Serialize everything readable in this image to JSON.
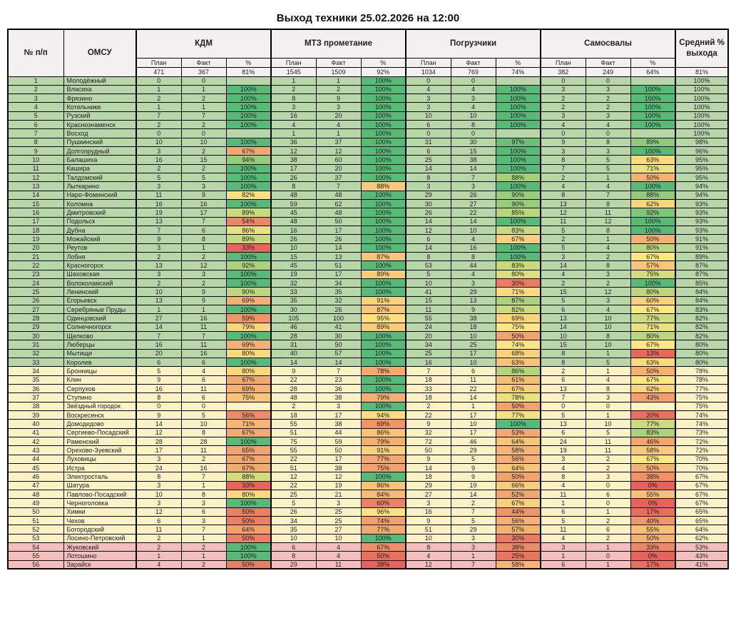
{
  "title": "Выход техники 25.02.2026 на 12:00",
  "header": {
    "num": "№ п/п",
    "omsu": "ОМСУ",
    "groups": [
      {
        "label": "КДМ"
      },
      {
        "label": "МТЗ прометание"
      },
      {
        "label": "Погрузчики"
      },
      {
        "label": "Самосвалы"
      }
    ],
    "sub": [
      "План",
      "Факт",
      "%"
    ],
    "avg": "Средний % выхода"
  },
  "totals": {
    "cells": [
      "471",
      "367",
      "81%",
      "1545",
      "1509",
      "92%",
      "1034",
      "769",
      "74%",
      "382",
      "249",
      "64%"
    ],
    "avg": "81%"
  },
  "colors": {
    "band_green": "#b7d7a8",
    "band_yellow": "#fcf2c3",
    "band_pink": "#f4bebc",
    "header_bg": "#f2f1ef",
    "scale_red": "#e8615a",
    "scale_yellow": "#fde87e",
    "scale_green": "#55bb77",
    "border": "#000000"
  },
  "scales": {
    "kdm": {
      "min": 25,
      "mid": 84
    },
    "mtz": {
      "min": 30,
      "mid": 97
    },
    "pogr": {
      "min": 0,
      "mid": 75
    },
    "sam": {
      "min": 0,
      "mid": 67
    }
  },
  "rows": [
    {
      "n": "1",
      "name": "Молодёжный",
      "band": "g",
      "c": [
        "0",
        "0",
        "",
        "1",
        "1",
        "100%",
        "0",
        "0",
        "",
        "0",
        "0",
        ""
      ],
      "avg": "100%"
    },
    {
      "n": "2",
      "name": "Власиха",
      "band": "g",
      "c": [
        "1",
        "1",
        "100%",
        "2",
        "2",
        "100%",
        "4",
        "4",
        "100%",
        "3",
        "3",
        "100%"
      ],
      "avg": "100%"
    },
    {
      "n": "3",
      "name": "Фрязино",
      "band": "g",
      "c": [
        "2",
        "2",
        "100%",
        "8",
        "9",
        "100%",
        "3",
        "3",
        "100%",
        "2",
        "2",
        "100%"
      ],
      "avg": "100%"
    },
    {
      "n": "4",
      "name": "Котельники",
      "band": "g",
      "c": [
        "1",
        "1",
        "100%",
        "3",
        "3",
        "100%",
        "3",
        "4",
        "100%",
        "2",
        "2",
        "100%"
      ],
      "avg": "100%"
    },
    {
      "n": "5",
      "name": "Рузский",
      "band": "g",
      "c": [
        "7",
        "7",
        "100%",
        "16",
        "20",
        "100%",
        "10",
        "10",
        "100%",
        "3",
        "3",
        "100%"
      ],
      "avg": "100%"
    },
    {
      "n": "6",
      "name": "Краснознаменск",
      "band": "g",
      "c": [
        "2",
        "2",
        "100%",
        "4",
        "4",
        "100%",
        "6",
        "8",
        "100%",
        "4",
        "4",
        "100%"
      ],
      "avg": "100%"
    },
    {
      "n": "7",
      "name": "Восход",
      "band": "g",
      "c": [
        "0",
        "0",
        "",
        "1",
        "1",
        "100%",
        "0",
        "0",
        "",
        "0",
        "0",
        ""
      ],
      "avg": "100%"
    },
    {
      "n": "8",
      "name": "Пушкинский",
      "band": "g",
      "c": [
        "10",
        "10",
        "100%",
        "36",
        "37",
        "100%",
        "31",
        "30",
        "97%",
        "9",
        "8",
        "89%"
      ],
      "avg": "98%"
    },
    {
      "n": "9",
      "name": "Долгопрудный",
      "band": "g",
      "c": [
        "3",
        "2",
        "67%",
        "12",
        "12",
        "100%",
        "6",
        "15",
        "100%",
        "3",
        "3",
        "100%"
      ],
      "avg": "96%"
    },
    {
      "n": "10",
      "name": "Балашиха",
      "band": "g",
      "c": [
        "16",
        "15",
        "94%",
        "38",
        "60",
        "100%",
        "25",
        "38",
        "100%",
        "8",
        "5",
        "63%"
      ],
      "avg": "95%"
    },
    {
      "n": "11",
      "name": "Кашира",
      "band": "g",
      "c": [
        "2",
        "2",
        "100%",
        "17",
        "20",
        "100%",
        "14",
        "14",
        "100%",
        "7",
        "5",
        "71%"
      ],
      "avg": "95%"
    },
    {
      "n": "12",
      "name": "Талдомский",
      "band": "g",
      "c": [
        "5",
        "5",
        "100%",
        "26",
        "37",
        "100%",
        "8",
        "7",
        "88%",
        "2",
        "1",
        "50%"
      ],
      "avg": "95%"
    },
    {
      "n": "13",
      "name": "Лыткарино",
      "band": "g",
      "c": [
        "3",
        "3",
        "100%",
        "8",
        "7",
        "88%",
        "3",
        "3",
        "100%",
        "4",
        "4",
        "100%"
      ],
      "avg": "94%"
    },
    {
      "n": "14",
      "name": "Наро-Фоминский",
      "band": "g",
      "c": [
        "11",
        "9",
        "82%",
        "48",
        "48",
        "100%",
        "29",
        "26",
        "90%",
        "8",
        "7",
        "88%"
      ],
      "avg": "94%"
    },
    {
      "n": "15",
      "name": "Коломна",
      "band": "g",
      "c": [
        "16",
        "16",
        "100%",
        "59",
        "62",
        "100%",
        "30",
        "27",
        "90%",
        "13",
        "8",
        "62%"
      ],
      "avg": "93%"
    },
    {
      "n": "16",
      "name": "Дмитровский",
      "band": "g",
      "c": [
        "19",
        "17",
        "89%",
        "45",
        "48",
        "100%",
        "26",
        "22",
        "85%",
        "12",
        "11",
        "92%"
      ],
      "avg": "93%"
    },
    {
      "n": "17",
      "name": "Подольск",
      "band": "g",
      "c": [
        "13",
        "7",
        "54%",
        "48",
        "50",
        "100%",
        "14",
        "14",
        "100%",
        "11",
        "12",
        "100%"
      ],
      "avg": "93%"
    },
    {
      "n": "18",
      "name": "Дубна",
      "band": "g",
      "c": [
        "7",
        "6",
        "86%",
        "16",
        "17",
        "100%",
        "12",
        "10",
        "83%",
        "5",
        "8",
        "100%"
      ],
      "avg": "93%"
    },
    {
      "n": "19",
      "name": "Можайский",
      "band": "g",
      "c": [
        "9",
        "8",
        "89%",
        "26",
        "26",
        "100%",
        "6",
        "4",
        "67%",
        "2",
        "1",
        "50%"
      ],
      "avg": "91%"
    },
    {
      "n": "20",
      "name": "Реутов",
      "band": "g",
      "c": [
        "3",
        "1",
        "33%",
        "10",
        "14",
        "100%",
        "14",
        "16",
        "100%",
        "5",
        "4",
        "80%"
      ],
      "avg": "91%"
    },
    {
      "n": "21",
      "name": "Лобня",
      "band": "g",
      "c": [
        "2",
        "2",
        "100%",
        "15",
        "13",
        "87%",
        "8",
        "8",
        "100%",
        "3",
        "2",
        "67%"
      ],
      "avg": "89%"
    },
    {
      "n": "22",
      "name": "Красногорск",
      "band": "g",
      "c": [
        "13",
        "12",
        "92%",
        "45",
        "51",
        "100%",
        "53",
        "44",
        "83%",
        "14",
        "8",
        "57%"
      ],
      "avg": "87%"
    },
    {
      "n": "23",
      "name": "Шаховская",
      "band": "g",
      "c": [
        "3",
        "3",
        "100%",
        "19",
        "17",
        "89%",
        "5",
        "4",
        "80%",
        "4",
        "3",
        "75%"
      ],
      "avg": "87%"
    },
    {
      "n": "24",
      "name": "Волоколамский",
      "band": "g",
      "c": [
        "2",
        "2",
        "100%",
        "32",
        "34",
        "100%",
        "10",
        "3",
        "30%",
        "2",
        "2",
        "100%"
      ],
      "avg": "85%"
    },
    {
      "n": "25",
      "name": "Ленинский",
      "band": "g",
      "c": [
        "10",
        "9",
        "90%",
        "33",
        "35",
        "100%",
        "41",
        "29",
        "71%",
        "15",
        "12",
        "80%"
      ],
      "avg": "84%"
    },
    {
      "n": "26",
      "name": "Егорьевск",
      "band": "g",
      "c": [
        "13",
        "9",
        "69%",
        "35",
        "32",
        "91%",
        "15",
        "13",
        "87%",
        "5",
        "3",
        "60%"
      ],
      "avg": "84%"
    },
    {
      "n": "27",
      "name": "Серебряные Пруды",
      "band": "g",
      "c": [
        "1",
        "1",
        "100%",
        "30",
        "26",
        "87%",
        "11",
        "9",
        "82%",
        "6",
        "4",
        "67%"
      ],
      "avg": "83%"
    },
    {
      "n": "28",
      "name": "Одинцовский",
      "band": "g",
      "c": [
        "27",
        "16",
        "59%",
        "105",
        "100",
        "95%",
        "55",
        "38",
        "69%",
        "13",
        "10",
        "77%"
      ],
      "avg": "82%"
    },
    {
      "n": "29",
      "name": "Солнечногорск",
      "band": "g",
      "c": [
        "14",
        "11",
        "79%",
        "46",
        "41",
        "89%",
        "24",
        "18",
        "75%",
        "14",
        "10",
        "71%"
      ],
      "avg": "82%"
    },
    {
      "n": "30",
      "name": "Щелково",
      "band": "g",
      "c": [
        "7",
        "7",
        "100%",
        "28",
        "30",
        "100%",
        "20",
        "10",
        "50%",
        "10",
        "8",
        "80%"
      ],
      "avg": "82%"
    },
    {
      "n": "31",
      "name": "Люберцы",
      "band": "g",
      "c": [
        "16",
        "11",
        "69%",
        "31",
        "50",
        "100%",
        "34",
        "25",
        "74%",
        "15",
        "10",
        "67%"
      ],
      "avg": "80%"
    },
    {
      "n": "32",
      "name": "Мытищи",
      "band": "g",
      "c": [
        "20",
        "16",
        "80%",
        "40",
        "57",
        "100%",
        "25",
        "17",
        "68%",
        "8",
        "1",
        "13%"
      ],
      "avg": "80%"
    },
    {
      "n": "33",
      "name": "Королев",
      "band": "g",
      "c": [
        "6",
        "6",
        "100%",
        "14",
        "14",
        "100%",
        "16",
        "10",
        "63%",
        "8",
        "5",
        "63%"
      ],
      "avg": "80%"
    },
    {
      "n": "34",
      "name": "Бронницы",
      "band": "y",
      "c": [
        "5",
        "4",
        "80%",
        "9",
        "7",
        "78%",
        "7",
        "6",
        "86%",
        "2",
        "1",
        "50%"
      ],
      "avg": "78%"
    },
    {
      "n": "35",
      "name": "Клин",
      "band": "y",
      "c": [
        "9",
        "6",
        "67%",
        "22",
        "23",
        "100%",
        "18",
        "11",
        "61%",
        "6",
        "4",
        "67%"
      ],
      "avg": "78%"
    },
    {
      "n": "36",
      "name": "Серпухов",
      "band": "y",
      "c": [
        "16",
        "11",
        "69%",
        "28",
        "36",
        "100%",
        "33",
        "22",
        "67%",
        "13",
        "8",
        "62%"
      ],
      "avg": "77%"
    },
    {
      "n": "37",
      "name": "Ступино",
      "band": "y",
      "c": [
        "8",
        "6",
        "75%",
        "48",
        "38",
        "79%",
        "18",
        "14",
        "78%",
        "7",
        "3",
        "43%"
      ],
      "avg": "75%"
    },
    {
      "n": "38",
      "name": "Звёздный городок",
      "band": "y",
      "c": [
        "0",
        "0",
        "",
        "2",
        "3",
        "100%",
        "2",
        "1",
        "50%",
        "0",
        "0",
        ""
      ],
      "avg": "75%"
    },
    {
      "n": "39",
      "name": "Воскресенск",
      "band": "y",
      "c": [
        "9",
        "5",
        "56%",
        "18",
        "17",
        "94%",
        "22",
        "17",
        "77%",
        "5",
        "1",
        "20%"
      ],
      "avg": "74%"
    },
    {
      "n": "40",
      "name": "Домодедово",
      "band": "y",
      "c": [
        "14",
        "10",
        "71%",
        "55",
        "38",
        "69%",
        "9",
        "10",
        "100%",
        "13",
        "10",
        "77%"
      ],
      "avg": "74%"
    },
    {
      "n": "41",
      "name": "Сергиево-Посадский",
      "band": "y",
      "c": [
        "12",
        "8",
        "67%",
        "51",
        "44",
        "86%",
        "32",
        "17",
        "53%",
        "6",
        "5",
        "83%"
      ],
      "avg": "73%"
    },
    {
      "n": "42",
      "name": "Раменский",
      "band": "y",
      "c": [
        "28",
        "28",
        "100%",
        "75",
        "59",
        "79%",
        "72",
        "46",
        "64%",
        "24",
        "11",
        "46%"
      ],
      "avg": "72%"
    },
    {
      "n": "43",
      "name": "Орехово-Зуевский",
      "band": "y",
      "c": [
        "17",
        "11",
        "65%",
        "55",
        "50",
        "91%",
        "50",
        "29",
        "58%",
        "19",
        "11",
        "58%"
      ],
      "avg": "72%"
    },
    {
      "n": "44",
      "name": "Луховицы",
      "band": "y",
      "c": [
        "3",
        "2",
        "67%",
        "22",
        "17",
        "77%",
        "9",
        "5",
        "56%",
        "3",
        "2",
        "67%"
      ],
      "avg": "70%"
    },
    {
      "n": "45",
      "name": "Истра",
      "band": "y",
      "c": [
        "24",
        "16",
        "67%",
        "51",
        "38",
        "75%",
        "14",
        "9",
        "64%",
        "4",
        "2",
        "50%"
      ],
      "avg": "70%"
    },
    {
      "n": "46",
      "name": "Электросталь",
      "band": "y",
      "c": [
        "8",
        "7",
        "88%",
        "12",
        "12",
        "100%",
        "18",
        "9",
        "50%",
        "8",
        "3",
        "38%"
      ],
      "avg": "67%"
    },
    {
      "n": "47",
      "name": "Шатура",
      "band": "y",
      "c": [
        "3",
        "1",
        "33%",
        "22",
        "19",
        "86%",
        "29",
        "19",
        "66%",
        "4",
        "0",
        "0%"
      ],
      "avg": "67%"
    },
    {
      "n": "48",
      "name": "Павлово-Посадский",
      "band": "y",
      "c": [
        "10",
        "8",
        "80%",
        "25",
        "21",
        "84%",
        "27",
        "14",
        "52%",
        "11",
        "6",
        "55%"
      ],
      "avg": "67%"
    },
    {
      "n": "49",
      "name": "Черноголовка",
      "band": "y",
      "c": [
        "3",
        "3",
        "100%",
        "5",
        "3",
        "60%",
        "3",
        "2",
        "67%",
        "1",
        "0",
        "0%"
      ],
      "avg": "67%"
    },
    {
      "n": "50",
      "name": "Химки",
      "band": "y",
      "c": [
        "12",
        "6",
        "50%",
        "26",
        "25",
        "96%",
        "16",
        "7",
        "44%",
        "6",
        "1",
        "17%"
      ],
      "avg": "65%"
    },
    {
      "n": "51",
      "name": "Чехов",
      "band": "y",
      "c": [
        "6",
        "3",
        "50%",
        "34",
        "25",
        "74%",
        "9",
        "5",
        "56%",
        "5",
        "2",
        "40%"
      ],
      "avg": "65%"
    },
    {
      "n": "52",
      "name": "Богородский",
      "band": "y",
      "c": [
        "11",
        "7",
        "64%",
        "35",
        "27",
        "77%",
        "51",
        "29",
        "57%",
        "11",
        "6",
        "55%"
      ],
      "avg": "64%"
    },
    {
      "n": "53",
      "name": "Лосино-Петровский",
      "band": "y",
      "c": [
        "2",
        "1",
        "50%",
        "10",
        "10",
        "100%",
        "10",
        "3",
        "30%",
        "4",
        "2",
        "50%"
      ],
      "avg": "62%"
    },
    {
      "n": "54",
      "name": "Жуковский",
      "band": "p",
      "c": [
        "2",
        "2",
        "100%",
        "6",
        "4",
        "67%",
        "8",
        "3",
        "38%",
        "3",
        "1",
        "33%"
      ],
      "avg": "53%"
    },
    {
      "n": "55",
      "name": "Лотошино",
      "band": "p",
      "c": [
        "1",
        "1",
        "100%",
        "8",
        "4",
        "50%",
        "4",
        "1",
        "25%",
        "1",
        "0",
        "0%"
      ],
      "avg": "43%"
    },
    {
      "n": "56",
      "name": "Зарайск",
      "band": "p",
      "c": [
        "4",
        "2",
        "50%",
        "29",
        "11",
        "38%",
        "12",
        "7",
        "58%",
        "6",
        "1",
        "17%"
      ],
      "avg": "41%"
    }
  ]
}
